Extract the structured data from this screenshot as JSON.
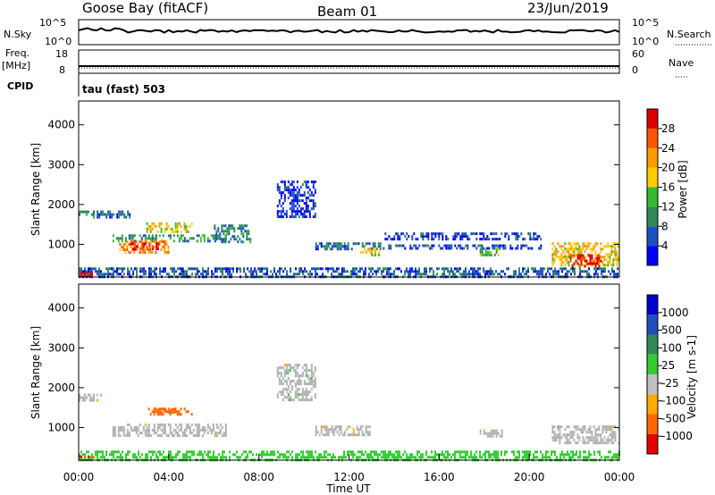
{
  "header": {
    "station": "Goose Bay (fitACF)",
    "beam": "Beam 01",
    "date": "23/Jun/2019"
  },
  "strip_panels": {
    "nsky": {
      "label": "N.Sky",
      "ticks": [
        "10^5",
        "10^0"
      ],
      "right_label": "N.Search",
      "right_ticks": [
        "10^5",
        "10^0"
      ]
    },
    "freq": {
      "label_line1": "Freq.",
      "label_line2": "[MHz]",
      "ticks": [
        "18",
        "8"
      ],
      "right_label": "Nave",
      "right_ticks": [
        "60",
        "0"
      ]
    },
    "cpid": {
      "label": "CPID",
      "value": "tau (fast) 503"
    }
  },
  "colors": {
    "power_scale": [
      "#0000ff",
      "#1f4fbf",
      "#2e8b57",
      "#33bb33",
      "#ffcc00",
      "#ff9900",
      "#ff5500",
      "#dd0000"
    ],
    "velocity_scale": [
      "#e60000",
      "#ff6600",
      "#ffaa00",
      "#c0c0c0",
      "#33cc33",
      "#2e8b57",
      "#1f4fbf",
      "#0000cc"
    ],
    "ground_scatter": "#b0b0b0"
  },
  "chart_data": [
    {
      "type": "heatmap",
      "name": "power",
      "ylabel": "Slant Range [km]",
      "xlabel": "Time UT",
      "xlim": [
        0,
        24
      ],
      "ylim": [
        180,
        4600
      ],
      "yticks": [
        1000,
        2000,
        3000,
        4000
      ],
      "xticks": [
        "00:00",
        "04:00",
        "08:00",
        "12:00",
        "16:00",
        "20:00",
        "00:00"
      ],
      "colorbar": {
        "label": "Power [dB]",
        "ticks": [
          "28",
          "24",
          "20",
          "16",
          "12",
          "8",
          "4"
        ],
        "range": [
          0,
          30
        ]
      },
      "regions": [
        {
          "t0": 0.0,
          "t1": 0.8,
          "r0": 1650,
          "r1": 1850,
          "power": 9
        },
        {
          "t0": 0.8,
          "t1": 2.3,
          "r0": 1650,
          "r1": 1850,
          "power": 6
        },
        {
          "t0": 1.5,
          "t1": 6.5,
          "r0": 1050,
          "r1": 1250,
          "power": 10
        },
        {
          "t0": 3.0,
          "t1": 5.0,
          "r0": 1300,
          "r1": 1550,
          "power": 17
        },
        {
          "t0": 1.8,
          "t1": 4.0,
          "r0": 800,
          "r1": 1100,
          "power": 22
        },
        {
          "t0": 2.3,
          "t1": 3.5,
          "r0": 850,
          "r1": 1050,
          "power": 27
        },
        {
          "t0": 6.0,
          "t1": 7.6,
          "r0": 1050,
          "r1": 1500,
          "power": 8
        },
        {
          "t0": 10.5,
          "t1": 13.5,
          "r0": 850,
          "r1": 1050,
          "power": 7
        },
        {
          "t0": 12.5,
          "t1": 13.3,
          "r0": 700,
          "r1": 900,
          "power": 18
        },
        {
          "t0": 13.5,
          "t1": 20.5,
          "r0": 1150,
          "r1": 1300,
          "power": 5
        },
        {
          "t0": 13.5,
          "t1": 20.5,
          "r0": 900,
          "r1": 1000,
          "power": 5
        },
        {
          "t0": 17.8,
          "t1": 18.6,
          "r0": 700,
          "r1": 900,
          "power": 14
        },
        {
          "t0": 21.0,
          "t1": 24.0,
          "r0": 500,
          "r1": 1050,
          "power": 18
        },
        {
          "t0": 21.8,
          "t1": 23.2,
          "r0": 450,
          "r1": 750,
          "power": 27
        },
        {
          "t0": 0.0,
          "t1": 24.0,
          "r0": 200,
          "r1": 420,
          "power": 6
        },
        {
          "t0": 0.0,
          "t1": 0.6,
          "r0": 180,
          "r1": 300,
          "power": 29
        },
        {
          "t0": 8.8,
          "t1": 10.5,
          "r0": 1700,
          "r1": 2600,
          "power": 4
        }
      ]
    },
    {
      "type": "heatmap",
      "name": "velocity",
      "ylabel": "Slant Range [km]",
      "xlabel": "Time UT",
      "xlim": [
        0,
        24
      ],
      "ylim": [
        180,
        4600
      ],
      "yticks": [
        1000,
        2000,
        3000,
        4000
      ],
      "xticks": [
        "00:00",
        "04:00",
        "08:00",
        "12:00",
        "16:00",
        "20:00",
        "00:00"
      ],
      "colorbar": {
        "label": "Velocity [m s-1]",
        "ticks": [
          "1000",
          "500",
          "100",
          "25",
          "-25",
          "-100",
          "-500",
          "-1000"
        ],
        "range": [
          -1100,
          1100
        ]
      },
      "regions": [
        {
          "t0": 0.0,
          "t1": 1.0,
          "r0": 1650,
          "r1": 1850,
          "vel": 0
        },
        {
          "t0": 1.5,
          "t1": 6.5,
          "r0": 800,
          "r1": 1100,
          "vel": 0
        },
        {
          "t0": 3.0,
          "t1": 5.0,
          "r0": 1300,
          "r1": 1500,
          "vel": -150
        },
        {
          "t0": 3.5,
          "t1": 4.3,
          "r0": 1350,
          "r1": 1480,
          "vel": -400
        },
        {
          "t0": 10.5,
          "t1": 13.0,
          "r0": 800,
          "r1": 1050,
          "vel": 0
        },
        {
          "t0": 17.8,
          "t1": 18.8,
          "r0": 750,
          "r1": 950,
          "vel": 0
        },
        {
          "t0": 21.0,
          "t1": 24.0,
          "r0": 600,
          "r1": 1050,
          "vel": 0
        },
        {
          "t0": 0.0,
          "t1": 24.0,
          "r0": 200,
          "r1": 420,
          "vel": 60
        },
        {
          "t0": 0.0,
          "t1": 0.6,
          "r0": 180,
          "r1": 300,
          "vel": -500
        },
        {
          "t0": 8.8,
          "t1": 10.5,
          "r0": 1700,
          "r1": 2600,
          "vel": 0
        }
      ]
    }
  ]
}
